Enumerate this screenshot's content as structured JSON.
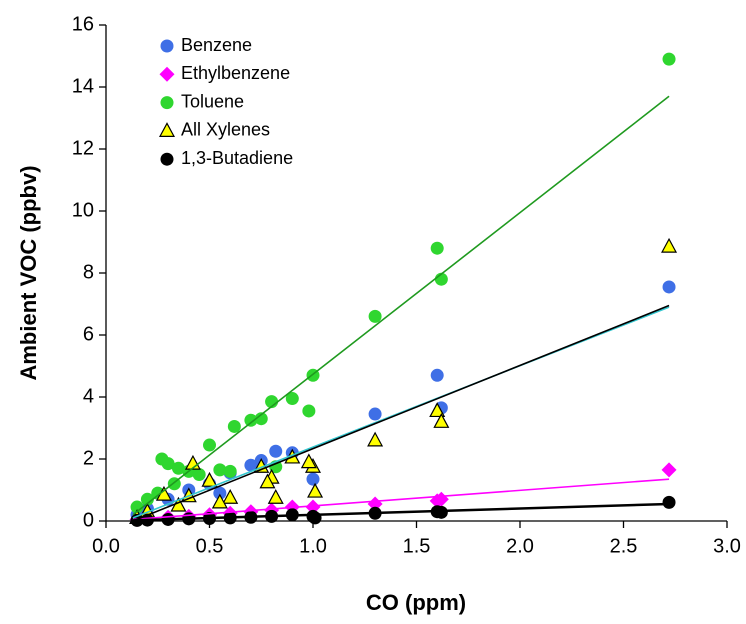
{
  "chart_data": {
    "type": "scatter",
    "x_label": "CO (ppm)",
    "y_label": "Ambient VOC (ppbv)",
    "xlim": [
      0,
      3
    ],
    "ylim": [
      0,
      16
    ],
    "xticks": [
      {
        "value": 0,
        "label": "0.0"
      },
      {
        "value": 0.5,
        "label": "0.5"
      },
      {
        "value": 1,
        "label": "1.0"
      },
      {
        "value": 1.5,
        "label": "1.5"
      },
      {
        "value": 2,
        "label": "2.0"
      },
      {
        "value": 2.5,
        "label": "2.5"
      },
      {
        "value": 3,
        "label": "3.0"
      }
    ],
    "yticks": [
      0,
      2,
      4,
      6,
      8,
      10,
      12,
      14,
      16
    ],
    "legend": "upper left",
    "series": [
      {
        "name": "Benzene",
        "color": "#3f6fe6",
        "marker": "circle",
        "trend_color": "#33c6cf",
        "x": [
          2.72,
          1.6,
          1.62,
          1.3,
          1.0,
          0.9,
          0.82,
          0.75,
          0.7,
          0.6,
          0.5,
          0.4,
          0.3,
          0.2,
          0.15,
          0.55
        ],
        "y": [
          7.55,
          4.7,
          3.65,
          3.45,
          1.35,
          2.2,
          2.25,
          1.95,
          1.8,
          1.55,
          1.2,
          1.0,
          0.7,
          0.4,
          0.2,
          0.9
        ],
        "trendline": {
          "x": [
            0.13,
            2.72
          ],
          "y": [
            0.1,
            6.9
          ]
        }
      },
      {
        "name": "Ethylbenzene",
        "color": "#ff00ff",
        "marker": "diamond",
        "trend_color": "#ff00ff",
        "x": [
          2.72,
          1.62,
          1.6,
          1.3,
          1.0,
          0.9,
          0.8,
          0.7,
          0.6,
          0.5,
          0.4,
          0.3,
          0.2,
          0.15
        ],
        "y": [
          1.65,
          0.7,
          0.65,
          0.55,
          0.45,
          0.45,
          0.35,
          0.3,
          0.25,
          0.2,
          0.15,
          0.12,
          0.08,
          0.05
        ],
        "trendline": {
          "x": [
            0.13,
            2.72
          ],
          "y": [
            0.05,
            1.35
          ]
        }
      },
      {
        "name": "Toluene",
        "color": "#2fd62f",
        "marker": "circle",
        "trend_color": "#1f9a1f",
        "x": [
          2.72,
          1.6,
          1.62,
          1.3,
          1.0,
          0.98,
          0.9,
          0.8,
          0.75,
          0.7,
          0.62,
          0.5,
          0.27,
          0.3,
          0.35,
          0.4,
          0.45,
          0.55,
          0.6,
          0.33,
          0.2,
          0.15,
          0.25,
          0.82
        ],
        "y": [
          14.9,
          8.8,
          7.8,
          6.6,
          4.7,
          3.55,
          3.95,
          3.85,
          3.3,
          3.25,
          3.05,
          2.45,
          2.0,
          1.85,
          1.7,
          1.6,
          1.5,
          1.65,
          1.6,
          1.2,
          0.7,
          0.45,
          0.9,
          1.75
        ],
        "trendline": {
          "x": [
            0.13,
            2.72
          ],
          "y": [
            0.2,
            13.7
          ]
        }
      },
      {
        "name": "All Xylenes",
        "color": "#ffff00",
        "marker": "triangle",
        "trend_color": "#000000",
        "x": [
          2.72,
          1.6,
          1.62,
          1.3,
          1.0,
          1.01,
          0.98,
          0.9,
          0.8,
          0.78,
          0.75,
          0.82,
          0.6,
          0.5,
          0.42,
          0.4,
          0.28,
          0.35,
          0.2,
          0.15,
          0.55
        ],
        "y": [
          8.85,
          3.55,
          3.2,
          2.6,
          1.75,
          0.95,
          1.9,
          2.05,
          1.4,
          1.25,
          1.75,
          0.75,
          0.75,
          1.3,
          1.85,
          0.8,
          0.85,
          0.5,
          0.3,
          0.1,
          0.6
        ],
        "trendline": {
          "x": [
            0.13,
            2.72
          ],
          "y": [
            0.0,
            6.95
          ]
        }
      },
      {
        "name": "1,3-Butadiene",
        "color": "#000000",
        "marker": "circle",
        "trend_color": "#000000",
        "x": [
          2.72,
          1.6,
          1.62,
          1.3,
          1.0,
          1.01,
          0.9,
          0.8,
          0.7,
          0.6,
          0.5,
          0.4,
          0.3,
          0.2,
          0.15
        ],
        "y": [
          0.6,
          0.3,
          0.28,
          0.25,
          0.15,
          0.1,
          0.2,
          0.15,
          0.12,
          0.1,
          0.08,
          0.07,
          0.05,
          0.03,
          0.02
        ],
        "trendline": {
          "x": [
            0.13,
            2.72
          ],
          "y": [
            0.02,
            0.55
          ]
        }
      }
    ]
  }
}
